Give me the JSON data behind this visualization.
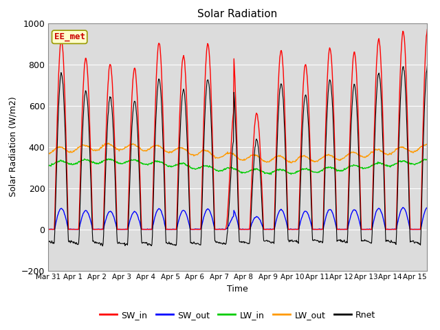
{
  "title": "Solar Radiation",
  "xlabel": "Time",
  "ylabel": "Solar Radiation (W/m2)",
  "ylim": [
    -200,
    1000
  ],
  "xlim_start": 0,
  "xlim_end": 15.5,
  "x_tick_labels": [
    "Mar 31",
    "Apr 1",
    "Apr 2",
    "Apr 3",
    "Apr 4",
    "Apr 5",
    "Apr 6",
    "Apr 7",
    "Apr 8",
    "Apr 9",
    "Apr 10",
    "Apr 11",
    "Apr 12",
    "Apr 13",
    "Apr 14",
    "Apr 15"
  ],
  "legend_labels": [
    "SW_in",
    "SW_out",
    "LW_in",
    "LW_out",
    "Rnet"
  ],
  "legend_colors": [
    "#ff0000",
    "#0000ff",
    "#00cc00",
    "#ff9900",
    "#000000"
  ],
  "annotation_text": "EE_met",
  "annotation_color": "#cc0000",
  "annotation_bg": "#ffffcc",
  "annotation_edge": "#999900",
  "plot_bg": "#dcdcdc",
  "grid_color": "#ffffff",
  "yticks": [
    -200,
    0,
    200,
    400,
    600,
    800,
    1000
  ],
  "n_days": 16,
  "dt": 0.02,
  "sw_peaks": [
    920,
    830,
    800,
    780,
    905,
    840,
    900,
    890,
    560,
    870,
    800,
    880,
    860,
    920,
    960,
    970
  ],
  "lw_in_base": 305,
  "lw_out_base": 370,
  "lw_net": -65,
  "night_rnet": -60
}
